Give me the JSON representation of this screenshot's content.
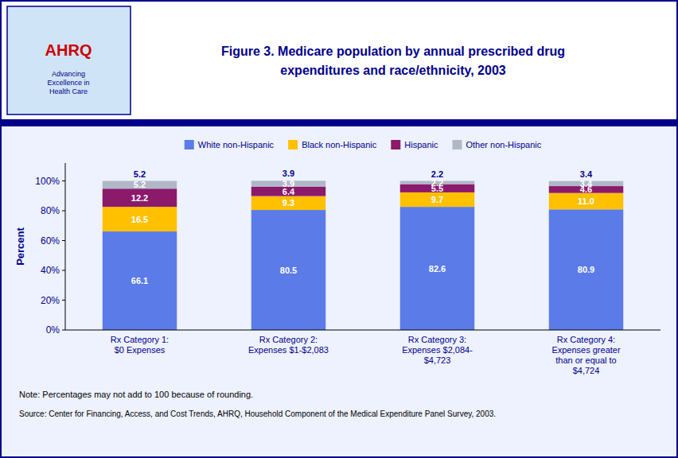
{
  "chart_data": {
    "type": "bar",
    "stacked": true,
    "title": "Figure 3. Medicare population by annual prescribed drug\nexpenditures and race/ethnicity, 2003",
    "y_label": "Percent",
    "categories": [
      "Rx Category 1:\n$0 Expenses",
      "Rx Category 2:\nExpenses $1-$2,083",
      "Rx Category 3:\nExpenses $2,084-\n$4,723",
      "Rx Category 4:\nExpenses greater\nthan or equal to\n$4,724"
    ],
    "series": [
      {
        "name": "White non-Hispanic",
        "color": "#5B7BE8",
        "values": [
          66.1,
          80.5,
          82.6,
          80.9
        ]
      },
      {
        "name": "Black non-Hispanic",
        "color": "#FFC000",
        "values": [
          16.5,
          9.3,
          9.7,
          11.0
        ],
        "value_labels": [
          "16.5",
          "9.3",
          "9.7",
          "11.0"
        ]
      },
      {
        "name": "Hispanic",
        "color": "#8B1A6B",
        "values": [
          12.2,
          6.4,
          5.5,
          4.6
        ]
      },
      {
        "name": "Other non-Hispanic",
        "color": "#B0B8C8",
        "values": [
          5.2,
          3.9,
          2.2,
          3.4
        ]
      }
    ],
    "ylim": [
      0,
      112
    ],
    "yticks": [
      {
        "value": 0,
        "label": "0%"
      },
      {
        "value": 20,
        "label": "20%"
      },
      {
        "value": 40,
        "label": "40%"
      },
      {
        "value": 60,
        "label": "60%"
      },
      {
        "value": 80,
        "label": "80%"
      },
      {
        "value": 100,
        "label": "100%"
      }
    ],
    "grid": false,
    "legend": "top",
    "data_labels": true,
    "annotations": [
      "AHRQ",
      "Advancing\nExcellence in\nHealth Care",
      "Note: Percentages may not add to 100 because of rounding.",
      "Source: Center for Financing, Access, and Cost Trends, AHRQ, Household Component of the Medical Expenditure Panel Survey, 2003."
    ]
  }
}
